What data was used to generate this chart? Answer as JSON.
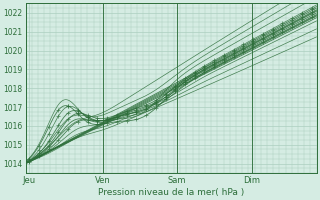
{
  "title": "Pression niveau de la mer( hPa )",
  "ylabel_vals": [
    1014,
    1015,
    1016,
    1017,
    1018,
    1019,
    1020,
    1021,
    1022
  ],
  "ylim": [
    1013.5,
    1022.5
  ],
  "xlim": [
    0.0,
    3.917
  ],
  "x_ticks": [
    0.042,
    1.042,
    2.042,
    3.042
  ],
  "x_tick_labels": [
    "Jeu",
    "Ven",
    "Sam",
    "Dim"
  ],
  "x_vlines": [
    1.042,
    2.042,
    3.042
  ],
  "bg_color": "#d5ece3",
  "grid_color": "#a8ccbc",
  "line_color": "#2d6e3a",
  "font_color": "#2d6e3a"
}
